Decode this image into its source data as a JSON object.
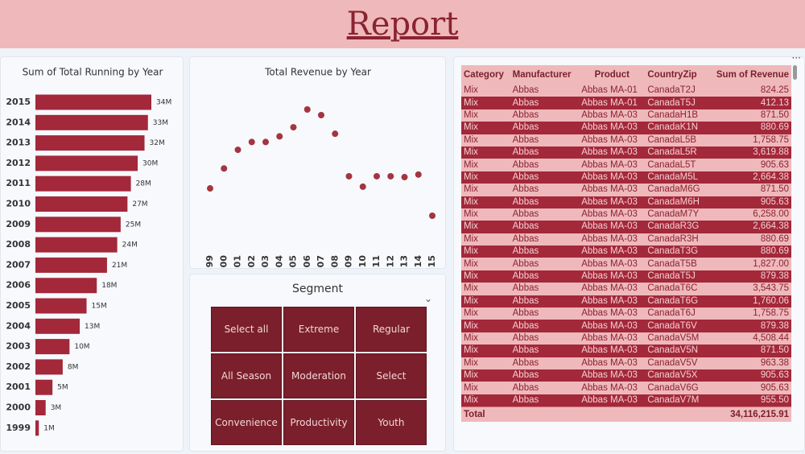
{
  "header": {
    "title": "Report"
  },
  "chart_data": [
    {
      "type": "bar",
      "orientation": "horizontal",
      "title": "Sum of Total Running by Year",
      "color": "#a3283a",
      "categories": [
        "2015",
        "2014",
        "2013",
        "2012",
        "2011",
        "2010",
        "2009",
        "2008",
        "2007",
        "2006",
        "2005",
        "2004",
        "2003",
        "2002",
        "2001",
        "2000",
        "1999"
      ],
      "values": [
        34,
        33,
        32,
        30,
        28,
        27,
        25,
        24,
        21,
        18,
        15,
        13,
        10,
        8,
        5,
        3,
        1
      ],
      "value_labels": [
        "34M",
        "33M",
        "32M",
        "30M",
        "28M",
        "27M",
        "25M",
        "24M",
        "21M",
        "18M",
        "15M",
        "13M",
        "10M",
        "8M",
        "5M",
        "3M",
        "1M"
      ]
    },
    {
      "type": "scatter",
      "title": "Total Revenue by Year",
      "color": "#a3353f",
      "categories": [
        "1999",
        "2000",
        "2001",
        "2002",
        "2003",
        "2004",
        "2005",
        "2006",
        "2007",
        "2008",
        "2009",
        "2010",
        "2011",
        "2012",
        "2013",
        "2014",
        "2015"
      ],
      "values": [
        1.24,
        1.7,
        2.13,
        2.31,
        2.31,
        2.44,
        2.65,
        3.06,
        2.93,
        2.5,
        1.52,
        1.28,
        1.52,
        1.52,
        1.5,
        1.56,
        0.61
      ]
    }
  ],
  "slicer": {
    "title": "Segment",
    "items": [
      "Select all",
      "Extreme",
      "Regular",
      "All Season",
      "Moderation",
      "Select",
      "Convenience",
      "Productivity",
      "Youth"
    ]
  },
  "table": {
    "columns": [
      "Category",
      "Manufacturer",
      "Product",
      "CountryZip",
      "Sum of Revenue"
    ],
    "rows": [
      [
        "Mix",
        "Abbas",
        "Abbas MA-01",
        "CanadaT2J",
        "824.25"
      ],
      [
        "Mix",
        "Abbas",
        "Abbas MA-01",
        "CanadaT5J",
        "412.13"
      ],
      [
        "Mix",
        "Abbas",
        "Abbas MA-03",
        "CanadaH1B",
        "871.50"
      ],
      [
        "Mix",
        "Abbas",
        "Abbas MA-03",
        "CanadaK1N",
        "880.69"
      ],
      [
        "Mix",
        "Abbas",
        "Abbas MA-03",
        "CanadaL5B",
        "1,758.75"
      ],
      [
        "Mix",
        "Abbas",
        "Abbas MA-03",
        "CanadaL5R",
        "3,619.88"
      ],
      [
        "Mix",
        "Abbas",
        "Abbas MA-03",
        "CanadaL5T",
        "905.63"
      ],
      [
        "Mix",
        "Abbas",
        "Abbas MA-03",
        "CanadaM5L",
        "2,664.38"
      ],
      [
        "Mix",
        "Abbas",
        "Abbas MA-03",
        "CanadaM6G",
        "871.50"
      ],
      [
        "Mix",
        "Abbas",
        "Abbas MA-03",
        "CanadaM6H",
        "905.63"
      ],
      [
        "Mix",
        "Abbas",
        "Abbas MA-03",
        "CanadaM7Y",
        "6,258.00"
      ],
      [
        "Mix",
        "Abbas",
        "Abbas MA-03",
        "CanadaR3G",
        "2,664.38"
      ],
      [
        "Mix",
        "Abbas",
        "Abbas MA-03",
        "CanadaR3H",
        "880.69"
      ],
      [
        "Mix",
        "Abbas",
        "Abbas MA-03",
        "CanadaT3G",
        "880.69"
      ],
      [
        "Mix",
        "Abbas",
        "Abbas MA-03",
        "CanadaT5B",
        "1,827.00"
      ],
      [
        "Mix",
        "Abbas",
        "Abbas MA-03",
        "CanadaT5J",
        "879.38"
      ],
      [
        "Mix",
        "Abbas",
        "Abbas MA-03",
        "CanadaT6C",
        "3,543.75"
      ],
      [
        "Mix",
        "Abbas",
        "Abbas MA-03",
        "CanadaT6G",
        "1,760.06"
      ],
      [
        "Mix",
        "Abbas",
        "Abbas MA-03",
        "CanadaT6J",
        "1,758.75"
      ],
      [
        "Mix",
        "Abbas",
        "Abbas MA-03",
        "CanadaT6V",
        "879.38"
      ],
      [
        "Mix",
        "Abbas",
        "Abbas MA-03",
        "CanadaV5M",
        "4,508.44"
      ],
      [
        "Mix",
        "Abbas",
        "Abbas MA-03",
        "CanadaV5N",
        "871.50"
      ],
      [
        "Mix",
        "Abbas",
        "Abbas MA-03",
        "CanadaV5V",
        "963.38"
      ],
      [
        "Mix",
        "Abbas",
        "Abbas MA-03",
        "CanadaV5X",
        "905.63"
      ],
      [
        "Mix",
        "Abbas",
        "Abbas MA-03",
        "CanadaV6G",
        "905.63"
      ],
      [
        "Mix",
        "Abbas",
        "Abbas MA-03",
        "CanadaV7M",
        "955.50"
      ]
    ],
    "total": {
      "label": "Total",
      "value": "34,116,215.91"
    }
  }
}
